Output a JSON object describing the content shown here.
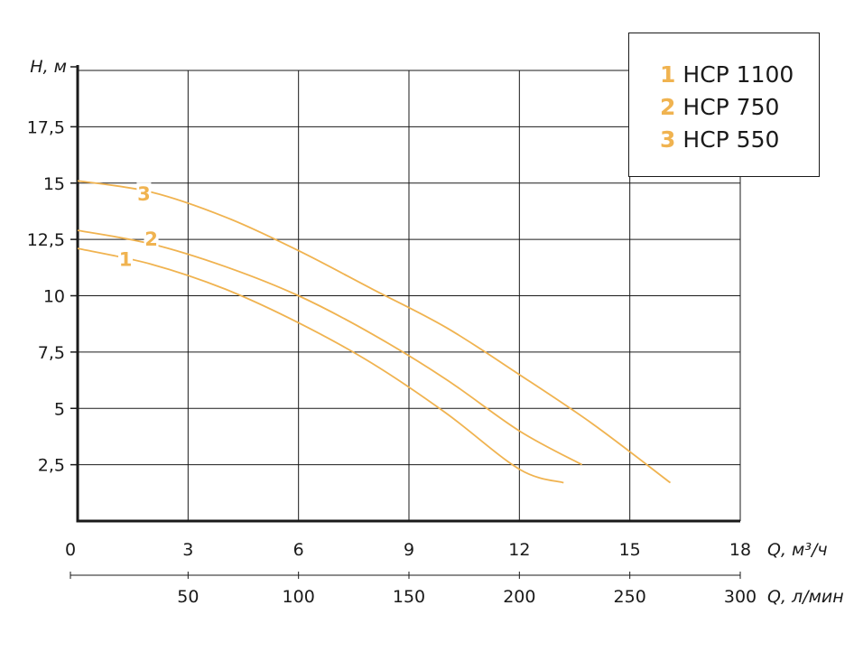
{
  "chart_data": {
    "type": "line",
    "x_axis_primary": {
      "unit_label": "Q, м³/ч",
      "ticks": [
        "0",
        "3",
        "6",
        "9",
        "12",
        "15",
        "18"
      ],
      "range": [
        0,
        18
      ]
    },
    "x_axis_secondary": {
      "unit_label": "Q, л/мин",
      "ticks": [
        "50",
        "100",
        "150",
        "200",
        "250",
        "300"
      ],
      "tick_values": [
        50,
        100,
        150,
        200,
        250,
        300
      ],
      "range": [
        0,
        300
      ]
    },
    "y_axis": {
      "unit_label": "H, м",
      "ticks": [
        "2,5",
        "5",
        "7,5",
        "10",
        "12,5",
        "15",
        "17,5"
      ],
      "tick_values": [
        2.5,
        5,
        7.5,
        10,
        12.5,
        15,
        17.5
      ],
      "range": [
        0,
        20
      ]
    },
    "grid": true,
    "legend_position": "top-right",
    "series": [
      {
        "id": "1",
        "name": "НСР 1100",
        "color": "#f0b350",
        "x": [
          0,
          2,
          4,
          6,
          8,
          10,
          12,
          13.2
        ],
        "y": [
          12.1,
          11.4,
          10.3,
          8.8,
          7.0,
          4.8,
          2.3,
          1.7
        ]
      },
      {
        "id": "2",
        "name": "НСР 750",
        "color": "#f0b350",
        "x": [
          0,
          2,
          4,
          6,
          8,
          10,
          12,
          13.7
        ],
        "y": [
          12.9,
          12.3,
          11.3,
          10.0,
          8.3,
          6.3,
          4.0,
          2.5
        ]
      },
      {
        "id": "3",
        "name": "НСР 550",
        "color": "#f0b350",
        "x": [
          0,
          2,
          4,
          6,
          8,
          10,
          12,
          14,
          16.1
        ],
        "y": [
          15.1,
          14.6,
          13.5,
          12.0,
          10.3,
          8.6,
          6.5,
          4.3,
          1.7
        ]
      }
    ],
    "curve_labels": [
      {
        "text": "1",
        "series": "1",
        "x": 1.3,
        "y": 11.6
      },
      {
        "text": "2",
        "series": "2",
        "x": 2.0,
        "y": 12.5
      },
      {
        "text": "3",
        "series": "3",
        "x": 1.8,
        "y": 14.5
      }
    ]
  },
  "legend": {
    "items": [
      {
        "num": "1",
        "label": "НСР 1100"
      },
      {
        "num": "2",
        "label": "НСР 750"
      },
      {
        "num": "3",
        "label": "НСР 550"
      }
    ]
  }
}
